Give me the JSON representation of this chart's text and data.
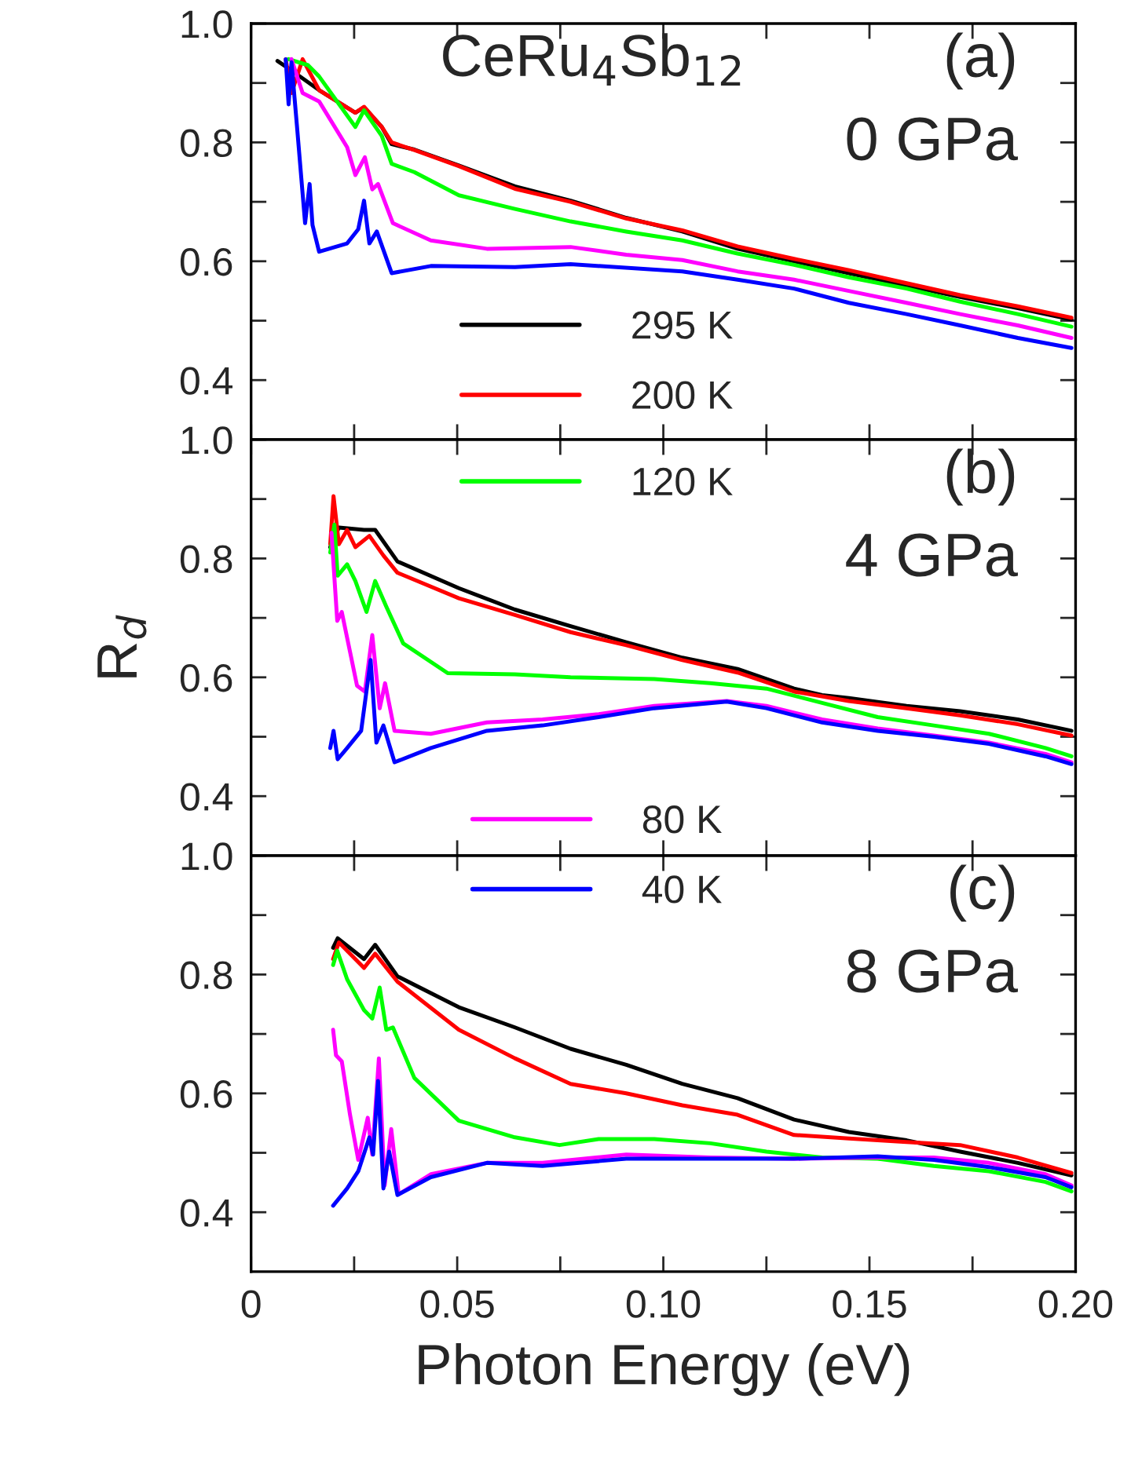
{
  "chart_data": [
    {
      "type": "line",
      "annotations": [
        "CeRu$_{4}$Sb$_{12}$",
        "(a)",
        "0 GPa"
      ],
      "xlim": [
        0,
        0.2
      ],
      "xticks": [
        {
          "value": 0,
          "label": null
        },
        {
          "value": 0.025,
          "label": null
        },
        {
          "value": 0.05,
          "label": null
        },
        {
          "value": 0.075,
          "label": null
        },
        {
          "value": 0.1,
          "label": null
        },
        {
          "value": 0.125,
          "label": null
        },
        {
          "value": 0.15,
          "label": null
        },
        {
          "value": 0.175,
          "label": null
        },
        {
          "value": 0.2,
          "label": null
        }
      ],
      "ylim": [
        0.3,
        1.0
      ],
      "yticks": [
        {
          "value": 0.4,
          "label": "0.4"
        },
        {
          "value": 0.5,
          "label": null
        },
        {
          "value": 0.6,
          "label": "0.6"
        },
        {
          "value": 0.7,
          "label": null
        },
        {
          "value": 0.8,
          "label": "0.8"
        },
        {
          "value": 0.9,
          "label": null
        },
        {
          "value": 1.0,
          "label": "1.0"
        }
      ],
      "tick_labels": "y",
      "grid": false,
      "legend": "bottom",
      "line_style": "solid",
      "marker": "none",
      "series": [
        {
          "name": "295 K",
          "color": "#000000",
          "x": [
            0.0064,
            0.0098,
            0.0165,
            0.0253,
            0.0274,
            0.0317,
            0.0341,
            0.0396,
            0.0504,
            0.064,
            0.0775,
            0.091,
            0.1046,
            0.118,
            0.1317,
            0.145,
            0.159,
            0.172,
            0.186,
            0.199
          ],
          "values": [
            0.937,
            0.921,
            0.888,
            0.85,
            0.859,
            0.826,
            0.797,
            0.788,
            0.761,
            0.726,
            0.702,
            0.673,
            0.65,
            0.621,
            0.6,
            0.58,
            0.559,
            0.54,
            0.521,
            0.502
          ]
        },
        {
          "name": "200 K",
          "color": "#ff0000",
          "x": [
            0.0084,
            0.0098,
            0.0125,
            0.0165,
            0.0253,
            0.0274,
            0.0317,
            0.0341,
            0.0396,
            0.0504,
            0.064,
            0.0775,
            0.091,
            0.1046,
            0.118,
            0.1317,
            0.145,
            0.159,
            0.172,
            0.186,
            0.199
          ],
          "values": [
            0.94,
            0.883,
            0.94,
            0.888,
            0.85,
            0.86,
            0.826,
            0.8,
            0.787,
            0.76,
            0.722,
            0.7,
            0.672,
            0.652,
            0.625,
            0.604,
            0.585,
            0.563,
            0.543,
            0.524,
            0.505
          ]
        },
        {
          "color": "#00ff00",
          "x": [
            0.0091,
            0.0138,
            0.0165,
            0.0253,
            0.0274,
            0.0317,
            0.0341,
            0.0396,
            0.0504,
            0.064,
            0.0775,
            0.091,
            0.1046,
            0.118,
            0.1317,
            0.145,
            0.159,
            0.172,
            0.186,
            0.199
          ],
          "values": [
            0.94,
            0.93,
            0.911,
            0.826,
            0.854,
            0.811,
            0.764,
            0.75,
            0.711,
            0.688,
            0.667,
            0.65,
            0.635,
            0.613,
            0.594,
            0.573,
            0.554,
            0.532,
            0.511,
            0.49
          ]
        },
        {
          "color": "#ff00ff",
          "x": [
            0.0098,
            0.0125,
            0.0165,
            0.0233,
            0.0253,
            0.0276,
            0.0294,
            0.0308,
            0.0344,
            0.0436,
            0.0572,
            0.0775,
            0.091,
            0.1046,
            0.118,
            0.1317,
            0.145,
            0.159,
            0.172,
            0.186,
            0.199
          ],
          "values": [
            0.94,
            0.883,
            0.869,
            0.792,
            0.745,
            0.775,
            0.721,
            0.73,
            0.664,
            0.635,
            0.621,
            0.624,
            0.611,
            0.602,
            0.583,
            0.569,
            0.55,
            0.53,
            0.511,
            0.492,
            0.471
          ]
        },
        {
          "color": "#0000ff",
          "x": [
            0.0084,
            0.0091,
            0.0098,
            0.0111,
            0.0131,
            0.0142,
            0.0149,
            0.0165,
            0.0233,
            0.026,
            0.0274,
            0.0287,
            0.0305,
            0.0341,
            0.0436,
            0.064,
            0.0775,
            0.1046,
            0.118,
            0.1317,
            0.145,
            0.159,
            0.172,
            0.186,
            0.199
          ],
          "values": [
            0.94,
            0.864,
            0.935,
            0.83,
            0.664,
            0.73,
            0.661,
            0.616,
            0.63,
            0.654,
            0.702,
            0.63,
            0.65,
            0.58,
            0.592,
            0.59,
            0.595,
            0.583,
            0.569,
            0.554,
            0.53,
            0.511,
            0.492,
            0.471,
            0.454
          ]
        }
      ]
    },
    {
      "type": "line",
      "annotations": [
        "(b)",
        "4 GPa"
      ],
      "ylabel": "R$_{d}$",
      "xlim": [
        0,
        0.2
      ],
      "xticks": [
        {
          "value": 0,
          "label": null
        },
        {
          "value": 0.025,
          "label": null
        },
        {
          "value": 0.05,
          "label": null
        },
        {
          "value": 0.075,
          "label": null
        },
        {
          "value": 0.1,
          "label": null
        },
        {
          "value": 0.125,
          "label": null
        },
        {
          "value": 0.15,
          "label": null
        },
        {
          "value": 0.175,
          "label": null
        },
        {
          "value": 0.2,
          "label": null
        }
      ],
      "ylim": [
        0.3,
        1.0
      ],
      "yticks": [
        {
          "value": 0.4,
          "label": "0.4"
        },
        {
          "value": 0.5,
          "label": null
        },
        {
          "value": 0.6,
          "label": "0.6"
        },
        {
          "value": 0.7,
          "label": null
        },
        {
          "value": 0.8,
          "label": "0.8"
        },
        {
          "value": 0.9,
          "label": null
        },
        {
          "value": 1.0,
          "label": "1.0"
        }
      ],
      "tick_labels": "y",
      "grid": false,
      "legend": "top",
      "line_style": "solid",
      "marker": "none",
      "series": [
        {
          "color": "#000000",
          "x": [
            0.0192,
            0.0213,
            0.0274,
            0.0301,
            0.0355,
            0.0504,
            0.064,
            0.0775,
            0.091,
            0.1046,
            0.118,
            0.1317,
            0.1385,
            0.145,
            0.159,
            0.172,
            0.186,
            0.199
          ],
          "values": [
            0.819,
            0.852,
            0.848,
            0.848,
            0.795,
            0.75,
            0.714,
            0.686,
            0.659,
            0.633,
            0.614,
            0.581,
            0.57,
            0.565,
            0.552,
            0.543,
            0.529,
            0.51
          ]
        },
        {
          "color": "#ff0000",
          "x": [
            0.0192,
            0.02,
            0.0213,
            0.0233,
            0.0253,
            0.0287,
            0.0321,
            0.0355,
            0.0504,
            0.064,
            0.0775,
            0.091,
            0.1046,
            0.118,
            0.1317,
            0.145,
            0.159,
            0.172,
            0.186,
            0.199
          ],
          "values": [
            0.824,
            0.905,
            0.824,
            0.848,
            0.819,
            0.838,
            0.805,
            0.776,
            0.733,
            0.705,
            0.676,
            0.654,
            0.629,
            0.608,
            0.576,
            0.56,
            0.548,
            0.536,
            0.521,
            0.502
          ]
        },
        {
          "name": "120 K",
          "color": "#00ff00",
          "x": [
            0.0192,
            0.0202,
            0.021,
            0.0233,
            0.0253,
            0.028,
            0.0301,
            0.0328,
            0.0369,
            0.0477,
            0.064,
            0.0775,
            0.0978,
            0.1114,
            0.125,
            0.1385,
            0.152,
            0.1656,
            0.179,
            0.1927,
            0.199
          ],
          "values": [
            0.81,
            0.857,
            0.771,
            0.79,
            0.762,
            0.71,
            0.762,
            0.719,
            0.657,
            0.607,
            0.605,
            0.6,
            0.597,
            0.59,
            0.581,
            0.557,
            0.533,
            0.519,
            0.505,
            0.481,
            0.467
          ]
        },
        {
          "color": "#ff00ff",
          "x": [
            0.0195,
            0.0209,
            0.022,
            0.024,
            0.0257,
            0.0276,
            0.0294,
            0.0312,
            0.0325,
            0.0348,
            0.0436,
            0.0572,
            0.0707,
            0.0843,
            0.0978,
            0.1154,
            0.125,
            0.1385,
            0.152,
            0.1656,
            0.179,
            0.1927,
            0.199
          ],
          "values": [
            0.843,
            0.695,
            0.71,
            0.643,
            0.586,
            0.576,
            0.671,
            0.548,
            0.59,
            0.51,
            0.505,
            0.524,
            0.529,
            0.538,
            0.552,
            0.56,
            0.552,
            0.529,
            0.514,
            0.502,
            0.49,
            0.471,
            0.457
          ]
        },
        {
          "color": "#0000ff",
          "x": [
            0.0192,
            0.02,
            0.021,
            0.0233,
            0.0267,
            0.029,
            0.0304,
            0.0321,
            0.0348,
            0.0436,
            0.0572,
            0.0707,
            0.0843,
            0.0978,
            0.1154,
            0.125,
            0.1385,
            0.152,
            0.1656,
            0.179,
            0.1927,
            0.199
          ],
          "values": [
            0.481,
            0.51,
            0.462,
            0.481,
            0.51,
            0.629,
            0.49,
            0.519,
            0.457,
            0.481,
            0.51,
            0.519,
            0.533,
            0.548,
            0.559,
            0.548,
            0.524,
            0.51,
            0.5,
            0.488,
            0.467,
            0.454
          ]
        }
      ]
    },
    {
      "type": "line",
      "annotations": [
        "(c)",
        "8 GPa"
      ],
      "xlabel": "Photon Energy (eV)",
      "xlim": [
        0,
        0.2
      ],
      "xticks": [
        {
          "value": 0,
          "label": "0"
        },
        {
          "value": 0.025,
          "label": null
        },
        {
          "value": 0.05,
          "label": "0.05"
        },
        {
          "value": 0.075,
          "label": null
        },
        {
          "value": 0.1,
          "label": "0.10"
        },
        {
          "value": 0.125,
          "label": null
        },
        {
          "value": 0.15,
          "label": "0.15"
        },
        {
          "value": 0.175,
          "label": null
        },
        {
          "value": 0.2,
          "label": "0.20"
        }
      ],
      "ylim": [
        0.3,
        1.0
      ],
      "yticks": [
        {
          "value": 0.4,
          "label": "0.4"
        },
        {
          "value": 0.5,
          "label": null
        },
        {
          "value": 0.6,
          "label": "0.6"
        },
        {
          "value": 0.7,
          "label": null
        },
        {
          "value": 0.8,
          "label": "0.8"
        },
        {
          "value": 0.9,
          "label": null
        },
        {
          "value": 1.0,
          "label": "1.0"
        }
      ],
      "grid": false,
      "legend": "top",
      "line_style": "solid",
      "marker": "none",
      "series": [
        {
          "color": "#000000",
          "x": [
            0.0199,
            0.021,
            0.0274,
            0.0301,
            0.0355,
            0.0504,
            0.064,
            0.0775,
            0.091,
            0.1046,
            0.118,
            0.1317,
            0.145,
            0.159,
            0.172,
            0.186,
            0.199
          ],
          "values": [
            0.845,
            0.861,
            0.826,
            0.85,
            0.797,
            0.745,
            0.711,
            0.675,
            0.648,
            0.616,
            0.592,
            0.556,
            0.535,
            0.521,
            0.502,
            0.483,
            0.462
          ]
        },
        {
          "color": "#ff0000",
          "x": [
            0.0199,
            0.0213,
            0.0274,
            0.0301,
            0.0355,
            0.0504,
            0.064,
            0.0775,
            0.091,
            0.1046,
            0.118,
            0.1317,
            0.145,
            0.159,
            0.172,
            0.186,
            0.199
          ],
          "values": [
            0.826,
            0.854,
            0.811,
            0.835,
            0.788,
            0.707,
            0.659,
            0.616,
            0.6,
            0.58,
            0.564,
            0.53,
            0.524,
            0.518,
            0.513,
            0.492,
            0.466
          ]
        },
        {
          "color": "#00ff00",
          "x": [
            0.0199,
            0.0209,
            0.0233,
            0.0274,
            0.0294,
            0.0312,
            0.0328,
            0.0344,
            0.0396,
            0.0504,
            0.064,
            0.0748,
            0.0843,
            0.0978,
            0.1114,
            0.125,
            0.1385,
            0.152,
            0.1656,
            0.179,
            0.1927,
            0.199
          ],
          "values": [
            0.816,
            0.84,
            0.792,
            0.74,
            0.726,
            0.778,
            0.707,
            0.711,
            0.626,
            0.554,
            0.526,
            0.513,
            0.523,
            0.523,
            0.516,
            0.502,
            0.492,
            0.49,
            0.478,
            0.469,
            0.451,
            0.435
          ]
        },
        {
          "name": "80 K",
          "color": "#ff00ff",
          "x": [
            0.0199,
            0.0206,
            0.022,
            0.024,
            0.026,
            0.0283,
            0.0294,
            0.031,
            0.0324,
            0.034,
            0.0358,
            0.0436,
            0.0572,
            0.0707,
            0.091,
            0.1114,
            0.1317,
            0.152,
            0.1656,
            0.179,
            0.1927,
            0.199
          ],
          "values": [
            0.707,
            0.664,
            0.654,
            0.564,
            0.488,
            0.559,
            0.497,
            0.659,
            0.445,
            0.54,
            0.43,
            0.464,
            0.483,
            0.483,
            0.497,
            0.492,
            0.49,
            0.492,
            0.492,
            0.483,
            0.464,
            0.445
          ]
        },
        {
          "name": "40 K",
          "color": "#0000ff",
          "x": [
            0.0199,
            0.0233,
            0.026,
            0.0287,
            0.0296,
            0.0308,
            0.0321,
            0.0335,
            0.0355,
            0.0436,
            0.0572,
            0.0707,
            0.091,
            0.1114,
            0.1317,
            0.152,
            0.1656,
            0.179,
            0.1927,
            0.199
          ],
          "values": [
            0.411,
            0.44,
            0.469,
            0.526,
            0.497,
            0.621,
            0.44,
            0.502,
            0.429,
            0.459,
            0.483,
            0.478,
            0.49,
            0.49,
            0.49,
            0.494,
            0.488,
            0.476,
            0.459,
            0.442
          ]
        }
      ]
    }
  ]
}
